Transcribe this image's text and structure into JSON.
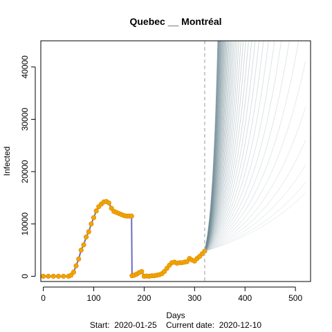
{
  "chart_data": {
    "type": "scatter",
    "title": "Quebec __ Montréal",
    "xlabel": "Days",
    "ylabel": "Infected",
    "caption": "Start:  2020-01-25    Current date:  2020-12-10",
    "xlim": [
      -5,
      530
    ],
    "ylim": [
      -1000,
      45000
    ],
    "x_ticks": [
      0,
      100,
      200,
      300,
      400,
      500
    ],
    "y_ticks": [
      0,
      10000,
      20000,
      30000,
      40000
    ],
    "current_day": 320,
    "grid": false,
    "legend": "none",
    "colors": {
      "observed_points": "#f2a400",
      "observed_points_edge": "#e08e00",
      "observed_line": "#6b6bc0",
      "projection_lines": "#6f8a94",
      "current_day_line": "#bbbbbb"
    },
    "observed": {
      "x": [
        0,
        10,
        20,
        30,
        40,
        50,
        55,
        60,
        65,
        70,
        75,
        80,
        85,
        90,
        95,
        100,
        105,
        110,
        115,
        120,
        125,
        130,
        135,
        140,
        145,
        150,
        155,
        160,
        165,
        170,
        175,
        176,
        180,
        185,
        190,
        195,
        200,
        205,
        210,
        215,
        220,
        225,
        230,
        235,
        240,
        245,
        250,
        255,
        260,
        265,
        270,
        275,
        280,
        285,
        290,
        295,
        300,
        305,
        310,
        315,
        320
      ],
      "y": [
        0,
        0,
        0,
        0,
        0,
        0,
        200,
        800,
        2000,
        3300,
        5000,
        6000,
        7500,
        8500,
        10000,
        11200,
        12500,
        13300,
        13800,
        14200,
        14300,
        14000,
        13000,
        12400,
        12200,
        12000,
        11800,
        11600,
        11500,
        11500,
        11500,
        100,
        200,
        400,
        700,
        900,
        0,
        50,
        0,
        100,
        100,
        200,
        300,
        500,
        900,
        1500,
        2100,
        2600,
        2700,
        2500,
        2600,
        2600,
        2700,
        2800,
        3400,
        3100,
        2900,
        3400,
        3800,
        4300,
        4800
      ]
    },
    "projections": {
      "start_day": 320,
      "end_day": 520,
      "start_value": 4800,
      "count": 45,
      "series": "projected infected trajectories from the current date"
    }
  }
}
